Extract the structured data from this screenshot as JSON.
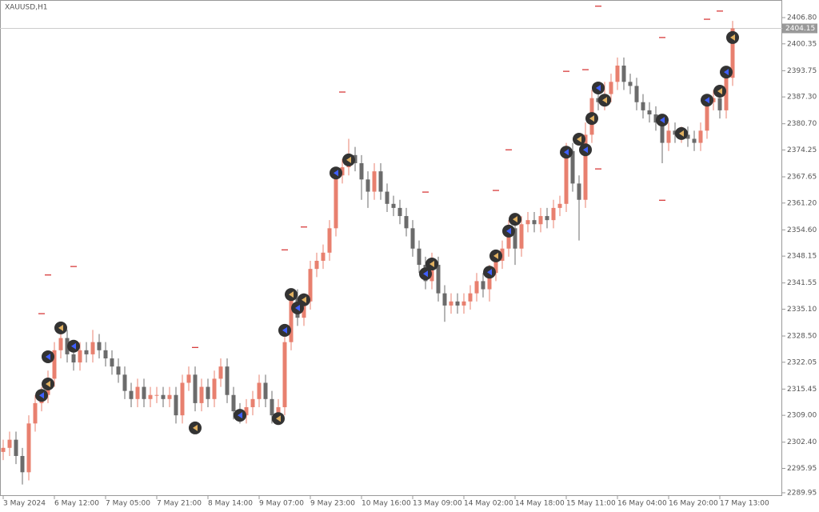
{
  "chart_data": {
    "type": "candlestick",
    "title": "XAUUSD,H1",
    "bull_color": "#e8806f",
    "bear_color": "#6b6b6b",
    "signal_color": "#333333",
    "level_color": "#cc0000",
    "current_price": 2404.15,
    "ylim": [
      2289.16,
      2411.13
    ],
    "yticks": [
      {
        "value": 2406.8,
        "label": "2406.80"
      },
      {
        "value": 2400.35,
        "label": "2400.35"
      },
      {
        "value": 2393.75,
        "label": "2393.75"
      },
      {
        "value": 2387.3,
        "label": "2387.30"
      },
      {
        "value": 2380.7,
        "label": "2380.70"
      },
      {
        "value": 2374.25,
        "label": "2374.25"
      },
      {
        "value": 2367.65,
        "label": "2367.65"
      },
      {
        "value": 2361.2,
        "label": "2361.20"
      },
      {
        "value": 2354.6,
        "label": "2354.60"
      },
      {
        "value": 2348.15,
        "label": "2348.15"
      },
      {
        "value": 2341.55,
        "label": "2341.55"
      },
      {
        "value": 2335.1,
        "label": "2335.10"
      },
      {
        "value": 2328.5,
        "label": "2328.50"
      },
      {
        "value": 2322.05,
        "label": "2322.05"
      },
      {
        "value": 2315.45,
        "label": "2315.45"
      },
      {
        "value": 2309.0,
        "label": "2309.00"
      },
      {
        "value": 2302.4,
        "label": "2302.40"
      },
      {
        "value": 2295.95,
        "label": "2295.95"
      },
      {
        "value": 2289.95,
        "label": "2289.95"
      }
    ],
    "categories": [
      "3 May 2024",
      null,
      null,
      null,
      null,
      null,
      null,
      null,
      "6 May 12:00",
      null,
      null,
      null,
      null,
      null,
      null,
      null,
      "7 May 05:00",
      null,
      null,
      null,
      null,
      null,
      null,
      null,
      "7 May 21:00",
      null,
      null,
      null,
      null,
      null,
      null,
      null,
      "8 May 14:00",
      null,
      null,
      null,
      null,
      null,
      null,
      null,
      "9 May 07:00",
      null,
      null,
      null,
      null,
      null,
      null,
      null,
      "9 May 23:00",
      null,
      null,
      null,
      null,
      null,
      null,
      null,
      "10 May 16:00",
      null,
      null,
      null,
      null,
      null,
      null,
      null,
      "13 May 09:00",
      null,
      null,
      null,
      null,
      null,
      null,
      null,
      "14 May 02:00",
      null,
      null,
      null,
      null,
      null,
      null,
      null,
      "14 May 18:00",
      null,
      null,
      null,
      null,
      null,
      null,
      null,
      "15 May 11:00",
      null,
      null,
      null,
      null,
      null,
      null,
      null,
      "16 May 04:00",
      null,
      null,
      null,
      null,
      null,
      null,
      null,
      "16 May 20:00",
      null,
      null,
      null,
      null,
      null,
      null,
      null,
      "17 May 13:00",
      null,
      null
    ],
    "open": [
      2300,
      2301,
      2303,
      2299,
      2295,
      2307,
      2312,
      2314,
      2318,
      2325,
      2328,
      2324,
      2322,
      2325,
      2324,
      2327,
      2325,
      2323,
      2321,
      2319,
      2315,
      2313,
      2316,
      2313,
      2314,
      2314,
      2313,
      2314,
      2309,
      2317,
      2319,
      2312,
      2316,
      2313,
      2318,
      2321,
      2314,
      2310,
      2309,
      2311,
      2313,
      2317,
      2313,
      2309,
      2311,
      2327,
      2338,
      2333,
      2337,
      2345,
      2347,
      2349,
      2355,
      2368,
      2370,
      2373,
      2371,
      2367,
      2364,
      2369,
      2364,
      2361,
      2360,
      2358,
      2355,
      2350,
      2346,
      2342,
      2346,
      2339,
      2336,
      2337,
      2336,
      2337,
      2339,
      2342,
      2340,
      2344,
      2347,
      2350,
      2355,
      2350,
      2356,
      2357,
      2356,
      2358,
      2357,
      2360,
      2361,
      2374,
      2366,
      2362,
      2378,
      2387,
      2386,
      2388,
      2391,
      2395,
      2391,
      2390,
      2386,
      2384,
      2383,
      2381,
      2376,
      2379,
      2378,
      2378,
      2377,
      2376,
      2379,
      2386,
      2387,
      2384,
      2392
    ],
    "high": [
      2303,
      2305,
      2305,
      2301,
      2309,
      2314,
      2316,
      2320,
      2327,
      2331,
      2330,
      2326,
      2327,
      2327,
      2330,
      2329,
      2327,
      2325,
      2323,
      2321,
      2317,
      2318,
      2318,
      2316,
      2316,
      2316,
      2316,
      2316,
      2319,
      2321,
      2321,
      2318,
      2318,
      2320,
      2323,
      2323,
      2316,
      2312,
      2313,
      2315,
      2319,
      2319,
      2315,
      2313,
      2329,
      2340,
      2340,
      2339,
      2347,
      2349,
      2351,
      2357,
      2370,
      2372,
      2377,
      2375,
      2373,
      2369,
      2371,
      2371,
      2366,
      2363,
      2362,
      2360,
      2357,
      2352,
      2348,
      2349,
      2348,
      2341,
      2339,
      2339,
      2339,
      2341,
      2344,
      2344,
      2346,
      2349,
      2352,
      2357,
      2357,
      2358,
      2359,
      2359,
      2360,
      2360,
      2362,
      2363,
      2376,
      2376,
      2368,
      2381,
      2389,
      2390,
      2391,
      2393,
      2397,
      2397,
      2393,
      2392,
      2388,
      2386,
      2385,
      2383,
      2381,
      2381,
      2380,
      2380,
      2379,
      2381,
      2388,
      2389,
      2389,
      2394,
      2406
    ],
    "low": [
      2298,
      2299,
      2297,
      2292,
      2293,
      2305,
      2310,
      2312,
      2316,
      2323,
      2322,
      2320,
      2320,
      2322,
      2322,
      2323,
      2321,
      2319,
      2317,
      2313,
      2311,
      2311,
      2311,
      2311,
      2312,
      2311,
      2311,
      2307,
      2307,
      2315,
      2310,
      2310,
      2311,
      2311,
      2316,
      2312,
      2308,
      2307,
      2307,
      2309,
      2311,
      2311,
      2307,
      2307,
      2309,
      2325,
      2331,
      2331,
      2335,
      2343,
      2345,
      2347,
      2353,
      2366,
      2368,
      2369,
      2362,
      2360,
      2362,
      2362,
      2359,
      2358,
      2356,
      2353,
      2348,
      2344,
      2340,
      2340,
      2337,
      2332,
      2334,
      2334,
      2334,
      2335,
      2337,
      2338,
      2337,
      2342,
      2345,
      2348,
      2346,
      2348,
      2354,
      2354,
      2354,
      2355,
      2355,
      2358,
      2359,
      2364,
      2352,
      2360,
      2376,
      2384,
      2384,
      2386,
      2389,
      2389,
      2388,
      2384,
      2382,
      2381,
      2379,
      2371,
      2374,
      2376,
      2376,
      2375,
      2374,
      2374,
      2377,
      2384,
      2382,
      2382,
      2390
    ],
    "close": [
      2301,
      2303,
      2299,
      2295,
      2307,
      2312,
      2314,
      2318,
      2325,
      2328,
      2324,
      2322,
      2325,
      2324,
      2327,
      2325,
      2323,
      2321,
      2319,
      2315,
      2313,
      2316,
      2313,
      2314,
      2314,
      2313,
      2314,
      2309,
      2317,
      2319,
      2312,
      2316,
      2313,
      2318,
      2321,
      2314,
      2310,
      2309,
      2311,
      2313,
      2317,
      2313,
      2309,
      2311,
      2327,
      2338,
      2333,
      2337,
      2345,
      2347,
      2349,
      2355,
      2368,
      2370,
      2373,
      2371,
      2367,
      2364,
      2369,
      2364,
      2361,
      2360,
      2358,
      2355,
      2350,
      2346,
      2342,
      2346,
      2339,
      2336,
      2337,
      2336,
      2337,
      2339,
      2342,
      2340,
      2344,
      2347,
      2350,
      2355,
      2350,
      2356,
      2357,
      2356,
      2358,
      2357,
      2360,
      2361,
      2374,
      2366,
      2362,
      2378,
      2387,
      2386,
      2388,
      2391,
      2395,
      2391,
      2390,
      2386,
      2384,
      2383,
      2381,
      2376,
      2379,
      2378,
      2378,
      2377,
      2376,
      2379,
      2386,
      2387,
      2384,
      2392,
      2404.15
    ],
    "signals": {
      "x": [
        6,
        7,
        7,
        9,
        11,
        30,
        37,
        43,
        44,
        45,
        46,
        47,
        52,
        54,
        66,
        67,
        76,
        77,
        79,
        80,
        88,
        90,
        91,
        92,
        93,
        94,
        103,
        106,
        110,
        112,
        113,
        114
      ],
      "y": [
        2313.9,
        2316.7,
        2323.4,
        2330.5,
        2326,
        2305.9,
        2309,
        2308.2,
        2329.9,
        2338.7,
        2335.4,
        2337.4,
        2368.6,
        2371.8,
        2343.8,
        2346.2,
        2344.2,
        2348.2,
        2354.3,
        2357.2,
        2373.7,
        2376.9,
        2374.3,
        2382,
        2389.5,
        2386.5,
        2381.6,
        2378.3,
        2386.5,
        2388.7,
        2393.4,
        2401.9
      ]
    },
    "levels": {
      "x": [
        7,
        11,
        6,
        30,
        44,
        47,
        53,
        66,
        77,
        79,
        88,
        91,
        93,
        93,
        103,
        103,
        110,
        112
      ],
      "y": [
        2343.5,
        2345.6,
        2334,
        2325.7,
        2349.7,
        2355.3,
        2388.5,
        2363.9,
        2364.3,
        2374.3,
        2393.6,
        2394,
        2409.6,
        2369.6,
        2401.9,
        2361.9,
        2406.4,
        2408.4
      ]
    }
  }
}
